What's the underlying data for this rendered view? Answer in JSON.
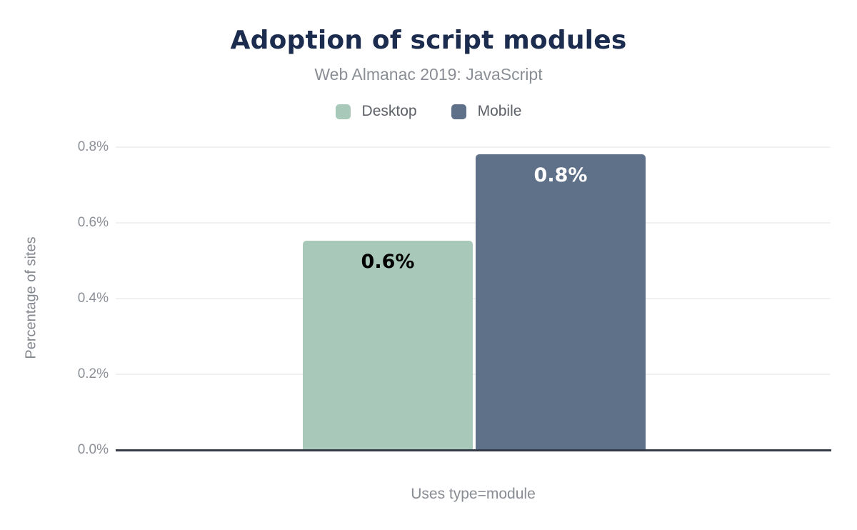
{
  "header": {
    "title": "Adoption of script modules",
    "subtitle": "Web Almanac 2019: JavaScript"
  },
  "legend": {
    "items": [
      {
        "label": "Desktop",
        "color": "#a8c9ba"
      },
      {
        "label": "Mobile",
        "color": "#5f7089"
      }
    ]
  },
  "axes": {
    "y_title": "Percentage of sites",
    "x_title": "Uses type=module"
  },
  "chart_data": {
    "type": "bar",
    "title": "Adoption of script modules",
    "subtitle": "Web Almanac 2019: JavaScript",
    "categories": [
      "Uses type=module"
    ],
    "series": [
      {
        "name": "Desktop",
        "values": [
          0.55
        ],
        "data_label": "0.6%",
        "color": "#a8c9ba",
        "label_color": "#000000"
      },
      {
        "name": "Mobile",
        "values": [
          0.78
        ],
        "data_label": "0.8%",
        "color": "#5f7089",
        "label_color": "#ffffff"
      }
    ],
    "xlabel": "Uses type=module",
    "ylabel": "Percentage of sites",
    "ylim": [
      0,
      0.85
    ],
    "yticks": {
      "values": [
        0,
        0.2,
        0.4,
        0.6,
        0.8
      ],
      "labels": [
        "0.0%",
        "0.2%",
        "0.4%",
        "0.6%",
        "0.8%"
      ]
    },
    "grid": "horizontal",
    "legend_position": "top",
    "colors": {
      "title": "#1c2c4e",
      "axis_text": "#8a8e96",
      "baseline": "#343a46",
      "gridline": "#f1f1f4"
    }
  }
}
